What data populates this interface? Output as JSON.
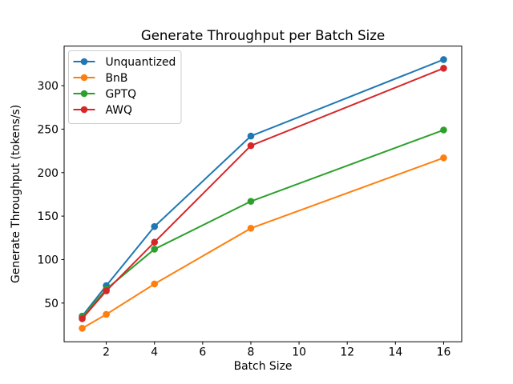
{
  "chart_data": {
    "type": "line",
    "title": "Generate Throughput per Batch Size",
    "xlabel": "Batch Size",
    "ylabel": "Generate Throughput (tokens/s)",
    "x": [
      1,
      2,
      4,
      8,
      16
    ],
    "series": [
      {
        "name": "Unquantized",
        "color": "#1f77b4",
        "values": [
          35,
          70,
          138,
          242,
          330
        ]
      },
      {
        "name": "BnB",
        "color": "#ff7f0e",
        "values": [
          21,
          37,
          72,
          136,
          217
        ]
      },
      {
        "name": "GPTQ",
        "color": "#2ca02c",
        "values": [
          34,
          66,
          112,
          167,
          249
        ]
      },
      {
        "name": "AWQ",
        "color": "#d62728",
        "values": [
          32,
          64,
          120,
          231,
          320
        ]
      }
    ],
    "xlim": [
      0.25,
      16.75
    ],
    "ylim": [
      5.5,
      345.5
    ],
    "xticks": [
      2,
      4,
      6,
      8,
      10,
      12,
      14,
      16
    ],
    "yticks": [
      50,
      100,
      150,
      200,
      250,
      300
    ],
    "legend_position": "upper left",
    "grid": false,
    "marker": "o",
    "axis_color": "#000000",
    "legend_border_color": "#cccccc",
    "legend_background": "rgba(255,255,255,0.8)"
  }
}
